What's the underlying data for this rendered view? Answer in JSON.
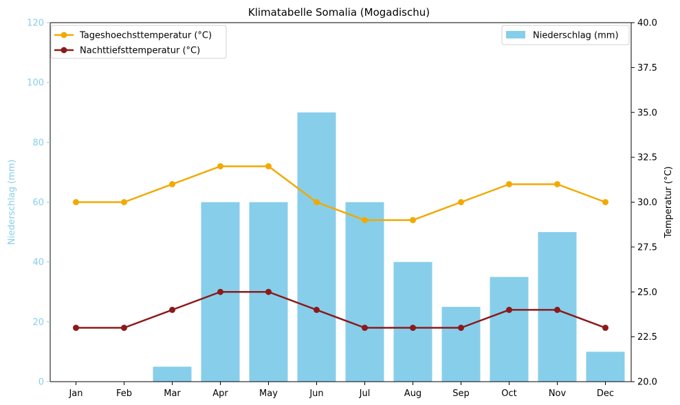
{
  "chart_data": {
    "type": "bar",
    "title": "Klimatabelle Somalia (Mogadischu)",
    "categories": [
      "Jan",
      "Feb",
      "Mar",
      "Apr",
      "May",
      "Jun",
      "Jul",
      "Aug",
      "Sep",
      "Oct",
      "Nov",
      "Dec"
    ],
    "left_axis": {
      "label": "Niederschlag (mm)",
      "ylim": [
        0,
        120
      ],
      "ticks": [
        "0",
        "20",
        "40",
        "60",
        "80",
        "100",
        "120"
      ],
      "color": "#87CEEB"
    },
    "right_axis": {
      "label": "Temperatur (°C)",
      "ylim": [
        20,
        40
      ],
      "ticks": [
        "20.0",
        "22.5",
        "25.0",
        "27.5",
        "30.0",
        "32.5",
        "35.0",
        "37.5",
        "40.0"
      ]
    },
    "series": [
      {
        "name": "Niederschlag (mm)",
        "type": "bar",
        "axis": "left",
        "color": "#87CEEB",
        "values": [
          0,
          0,
          5,
          60,
          60,
          90,
          60,
          40,
          25,
          35,
          50,
          10
        ]
      },
      {
        "name": "Tageshoechsttemperatur (°C)",
        "type": "line",
        "axis": "right",
        "color": "#F2A900",
        "values": [
          30,
          30,
          31,
          32,
          32,
          30,
          29,
          29,
          30,
          31,
          31,
          30
        ]
      },
      {
        "name": "Nachttiefsttemperatur (°C)",
        "type": "line",
        "axis": "right",
        "color": "#8B1A1A",
        "values": [
          23,
          23,
          24,
          25,
          25,
          24,
          23,
          23,
          23,
          24,
          24,
          23
        ]
      }
    ],
    "legend_left_placement": "top-left",
    "legend_right_placement": "top-right",
    "grid": false
  }
}
